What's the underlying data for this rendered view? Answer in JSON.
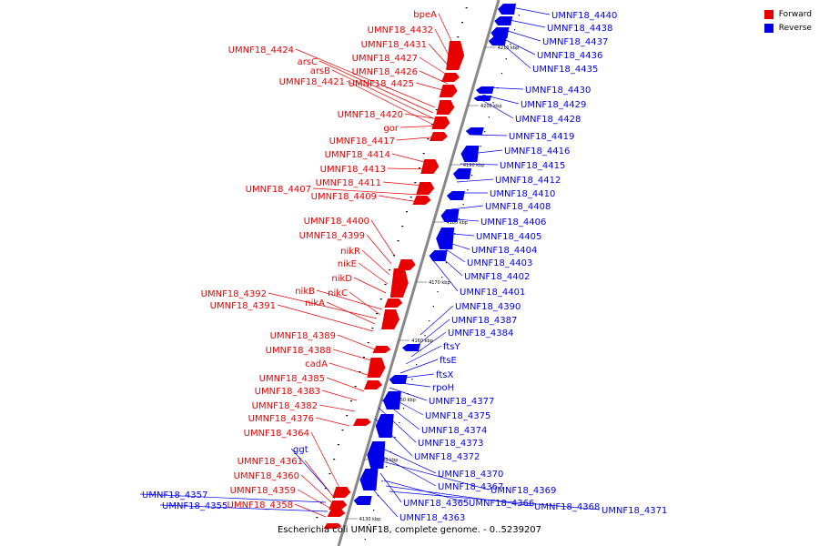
{
  "caption": "Escherichia coli UMNF18, complete genome. - 0..5239207",
  "legend": [
    {
      "label": "Forward",
      "color": "#e80000"
    },
    {
      "label": "Reverse",
      "color": "#0000e8"
    }
  ],
  "colors": {
    "forward": "#e80000",
    "reverse": "#0000e8",
    "axis": "#888888",
    "tick_label": "#000000"
  },
  "ticks": [
    "4210 kbp",
    "4200 kbp",
    "4190 kbp",
    "4180 kbp",
    "4170 kbp",
    "4160 kbp",
    "4150 kbp",
    "4140 kbp",
    "4130 kbp"
  ],
  "forward_labels": [
    "bpeA",
    "UMNF18_4432",
    "UMNF18_4431",
    "UMNF18_4424",
    "UMNF18_4427",
    "arsC",
    "UMNF18_4426",
    "arsB",
    "UMNF18_4421",
    "UMNF18_4425",
    "UMNF18_4420",
    "gor",
    "UMNF18_4417",
    "UMNF18_4414",
    "UMNF18_4413",
    "UMNF18_4411",
    "UMNF18_4407",
    "UMNF18_4409",
    "UMNF18_4400",
    "UMNF18_4399",
    "nikR",
    "nikE",
    "nikD",
    "nikB",
    "nikC",
    "UMNF18_4392",
    "nikA",
    "UMNF18_4391",
    "UMNF18_4389",
    "UMNF18_4388",
    "cadA",
    "UMNF18_4385",
    "UMNF18_4383",
    "UMNF18_4382",
    "UMNF18_4376",
    "UMNF18_4364",
    "UMNF18_4361",
    "UMNF18_4360",
    "UMNF18_4359",
    "UMNF18_4358"
  ],
  "reverse_labels": [
    "UMNF18_4440",
    "UMNF18_4438",
    "UMNF18_4437",
    "UMNF18_4436",
    "UMNF18_4435",
    "UMNF18_4430",
    "UMNF18_4429",
    "UMNF18_4428",
    "UMNF18_4419",
    "UMNF18_4416",
    "UMNF18_4415",
    "UMNF18_4412",
    "UMNF18_4410",
    "UMNF18_4408",
    "UMNF18_4406",
    "UMNF18_4405",
    "UMNF18_4404",
    "UMNF18_4403",
    "UMNF18_4402",
    "UMNF18_4401",
    "UMNF18_4390",
    "UMNF18_4387",
    "UMNF18_4384",
    "ftsY",
    "ftsE",
    "ftsX",
    "rpoH",
    "UMNF18_4377",
    "UMNF18_4375",
    "UMNF18_4374",
    "UMNF18_4373",
    "UMNF18_4372",
    "ggt",
    "UMNF18_4370",
    "UMNF18_4367",
    "UMNF18_4369",
    "UMNF18_4357",
    "UMNF18_4355",
    "UMNF18_4365",
    "UMNF18_4366",
    "UMNF18_4368",
    "UMNF18_4371",
    "UMNF18_4363"
  ]
}
